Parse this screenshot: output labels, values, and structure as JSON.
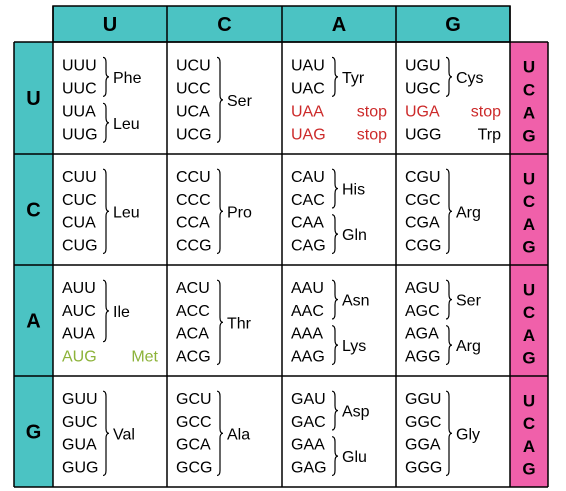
{
  "colors": {
    "header_fill": "#4bc3c3",
    "third_fill": "#f060aa",
    "stop_color": "#cc2a2a",
    "start_color": "#8db33a",
    "text": "#000000",
    "border": "#000000"
  },
  "top_headers": [
    "U",
    "C",
    "A",
    "G"
  ],
  "left_headers": [
    "U",
    "C",
    "A",
    "G"
  ],
  "third_letters": [
    "U",
    "C",
    "A",
    "G"
  ],
  "rows": [
    {
      "cells": [
        {
          "codons": [
            "UUU",
            "UUC",
            "UUA",
            "UUG"
          ],
          "groups": [
            {
              "span": [
                0,
                1
              ],
              "label": "Phe"
            },
            {
              "span": [
                2,
                3
              ],
              "label": "Leu"
            }
          ]
        },
        {
          "codons": [
            "UCU",
            "UCC",
            "UCA",
            "UCG"
          ],
          "groups": [
            {
              "span": [
                0,
                3
              ],
              "label": "Ser"
            }
          ]
        },
        {
          "codons": [
            "UAU",
            "UAC",
            "UAA",
            "UAG"
          ],
          "groups": [
            {
              "span": [
                0,
                1
              ],
              "label": "Tyr"
            }
          ],
          "singles": [
            {
              "idx": 2,
              "label": "stop",
              "style": "stop"
            },
            {
              "idx": 3,
              "label": "stop",
              "style": "stop"
            }
          ]
        },
        {
          "codons": [
            "UGU",
            "UGC",
            "UGA",
            "UGG"
          ],
          "groups": [
            {
              "span": [
                0,
                1
              ],
              "label": "Cys"
            }
          ],
          "singles": [
            {
              "idx": 2,
              "label": "stop",
              "style": "stop"
            },
            {
              "idx": 3,
              "label": "Trp",
              "style": "normal"
            }
          ]
        }
      ]
    },
    {
      "cells": [
        {
          "codons": [
            "CUU",
            "CUC",
            "CUA",
            "CUG"
          ],
          "groups": [
            {
              "span": [
                0,
                3
              ],
              "label": "Leu"
            }
          ]
        },
        {
          "codons": [
            "CCU",
            "CCC",
            "CCA",
            "CCG"
          ],
          "groups": [
            {
              "span": [
                0,
                3
              ],
              "label": "Pro"
            }
          ]
        },
        {
          "codons": [
            "CAU",
            "CAC",
            "CAA",
            "CAG"
          ],
          "groups": [
            {
              "span": [
                0,
                1
              ],
              "label": "His"
            },
            {
              "span": [
                2,
                3
              ],
              "label": "Gln"
            }
          ]
        },
        {
          "codons": [
            "CGU",
            "CGC",
            "CGA",
            "CGG"
          ],
          "groups": [
            {
              "span": [
                0,
                3
              ],
              "label": "Arg"
            }
          ]
        }
      ]
    },
    {
      "cells": [
        {
          "codons": [
            "AUU",
            "AUC",
            "AUA",
            "AUG"
          ],
          "groups": [
            {
              "span": [
                0,
                2
              ],
              "label": "Ile"
            }
          ],
          "singles": [
            {
              "idx": 3,
              "label": "Met",
              "style": "start"
            }
          ]
        },
        {
          "codons": [
            "ACU",
            "ACC",
            "ACA",
            "ACG"
          ],
          "groups": [
            {
              "span": [
                0,
                3
              ],
              "label": "Thr"
            }
          ]
        },
        {
          "codons": [
            "AAU",
            "AAC",
            "AAA",
            "AAG"
          ],
          "groups": [
            {
              "span": [
                0,
                1
              ],
              "label": "Asn"
            },
            {
              "span": [
                2,
                3
              ],
              "label": "Lys"
            }
          ]
        },
        {
          "codons": [
            "AGU",
            "AGC",
            "AGA",
            "AGG"
          ],
          "groups": [
            {
              "span": [
                0,
                1
              ],
              "label": "Ser"
            },
            {
              "span": [
                2,
                3
              ],
              "label": "Arg"
            }
          ]
        }
      ]
    },
    {
      "cells": [
        {
          "codons": [
            "GUU",
            "GUC",
            "GUA",
            "GUG"
          ],
          "groups": [
            {
              "span": [
                0,
                3
              ],
              "label": "Val"
            }
          ]
        },
        {
          "codons": [
            "GCU",
            "GCC",
            "GCA",
            "GCG"
          ],
          "groups": [
            {
              "span": [
                0,
                3
              ],
              "label": "Ala"
            }
          ]
        },
        {
          "codons": [
            "GAU",
            "GAC",
            "GAA",
            "GAG"
          ],
          "groups": [
            {
              "span": [
                0,
                1
              ],
              "label": "Asp"
            },
            {
              "span": [
                2,
                3
              ],
              "label": "Glu"
            }
          ]
        },
        {
          "codons": [
            "GGU",
            "GGC",
            "GGA",
            "GGG"
          ],
          "groups": [
            {
              "span": [
                0,
                3
              ],
              "label": "Gly"
            }
          ]
        }
      ]
    }
  ]
}
